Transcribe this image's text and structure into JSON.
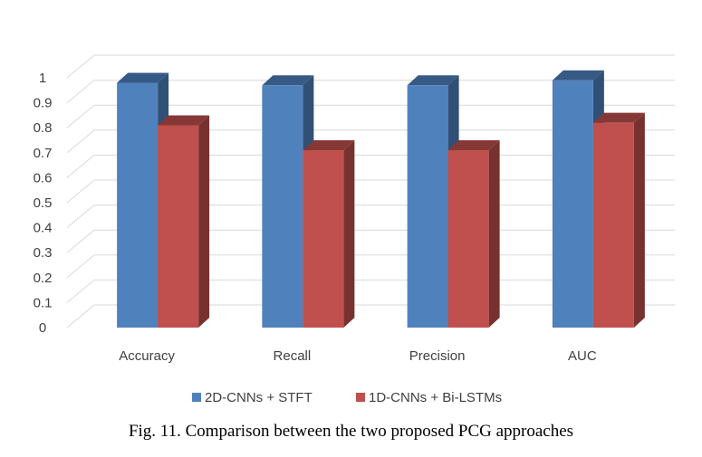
{
  "chart_data": {
    "type": "bar",
    "style": "3d-clustered-column",
    "categories": [
      "Accuracy",
      "Recall",
      "Precision",
      "AUC"
    ],
    "series": [
      {
        "name": "2D-CNNs + STFT",
        "values": [
          0.98,
          0.97,
          0.97,
          0.99
        ],
        "color": "#4f81bd"
      },
      {
        "name": "1D-CNNs + Bi-LSTMs",
        "values": [
          0.81,
          0.71,
          0.71,
          0.82
        ],
        "color": "#c0504d"
      }
    ],
    "yticks": [
      "0",
      "0.1",
      "0.2",
      "0.3",
      "0.4",
      "0.5",
      "0.6",
      "0.7",
      "0.8",
      "0.9",
      "1"
    ],
    "ylim": [
      0,
      1
    ],
    "grid": true,
    "legend_position": "bottom"
  },
  "caption": "Fig. 11. Comparison between the two proposed PCG approaches"
}
